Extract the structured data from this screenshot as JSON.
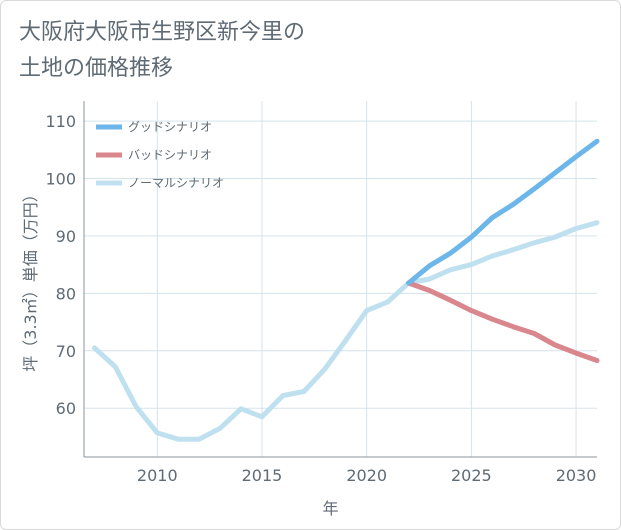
{
  "title_line1": "大阪府大阪市生野区新今里の",
  "title_line2": "土地の価格推移",
  "chart_data": {
    "type": "line",
    "xlabel": "年",
    "ylabel": "坪（3.3㎡）単価（万円）",
    "xlim": [
      2006.5,
      2031
    ],
    "ylim": [
      51.5,
      113.5
    ],
    "x_ticks": [
      2010,
      2015,
      2020,
      2025,
      2030
    ],
    "y_ticks": [
      60,
      70,
      80,
      90,
      100,
      110
    ],
    "grid": true,
    "legend_position": "top-left",
    "series": [
      {
        "name": "グッドシナリオ",
        "color": "#6cb6ea",
        "x": [
          2022,
          2023,
          2024,
          2025,
          2026,
          2027,
          2028,
          2029,
          2030,
          2031
        ],
        "y": [
          81.8,
          84.8,
          87.0,
          89.8,
          93.2,
          95.5,
          98.2,
          101.0,
          103.8,
          106.5
        ]
      },
      {
        "name": "バッドシナリオ",
        "color": "#d9868d",
        "x": [
          2022,
          2023,
          2024,
          2025,
          2026,
          2027,
          2028,
          2029,
          2030,
          2031
        ],
        "y": [
          81.8,
          80.5,
          78.8,
          77.0,
          75.5,
          74.2,
          73.0,
          71.0,
          69.6,
          68.3
        ]
      },
      {
        "name": "ノーマルシナリオ",
        "color": "#bfe0ef",
        "x": [
          2007,
          2008,
          2009,
          2010,
          2011,
          2012,
          2013,
          2014,
          2015,
          2016,
          2017,
          2018,
          2019,
          2020,
          2021,
          2022,
          2023,
          2024,
          2025,
          2026,
          2027,
          2028,
          2029,
          2030,
          2031
        ],
        "y": [
          70.5,
          67.2,
          60.2,
          55.7,
          54.6,
          54.6,
          56.5,
          59.9,
          58.5,
          62.2,
          62.9,
          66.8,
          71.8,
          77.0,
          78.5,
          81.8,
          82.5,
          84.1,
          85.0,
          86.5,
          87.6,
          88.8,
          89.8,
          91.3,
          92.3
        ]
      }
    ]
  }
}
